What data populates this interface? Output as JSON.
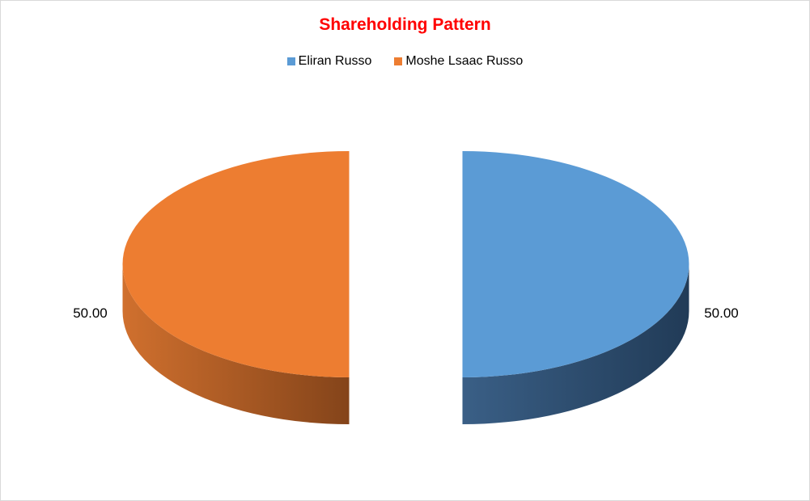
{
  "chart_data": {
    "type": "pie",
    "style": "3d-exploded",
    "title": "Shareholding Pattern",
    "legend_position": "top",
    "categories": [
      "Eliran Russo",
      "Moshe Lsaac Russo"
    ],
    "values": [
      50.0,
      50.0
    ],
    "data_labels": [
      "50.00",
      "50.00"
    ],
    "colors": [
      "#5b9bd5",
      "#ed7d31"
    ],
    "side_colors": [
      [
        "#3a5f86",
        "#213b57"
      ],
      [
        "#d0702e",
        "#84441a"
      ]
    ]
  }
}
